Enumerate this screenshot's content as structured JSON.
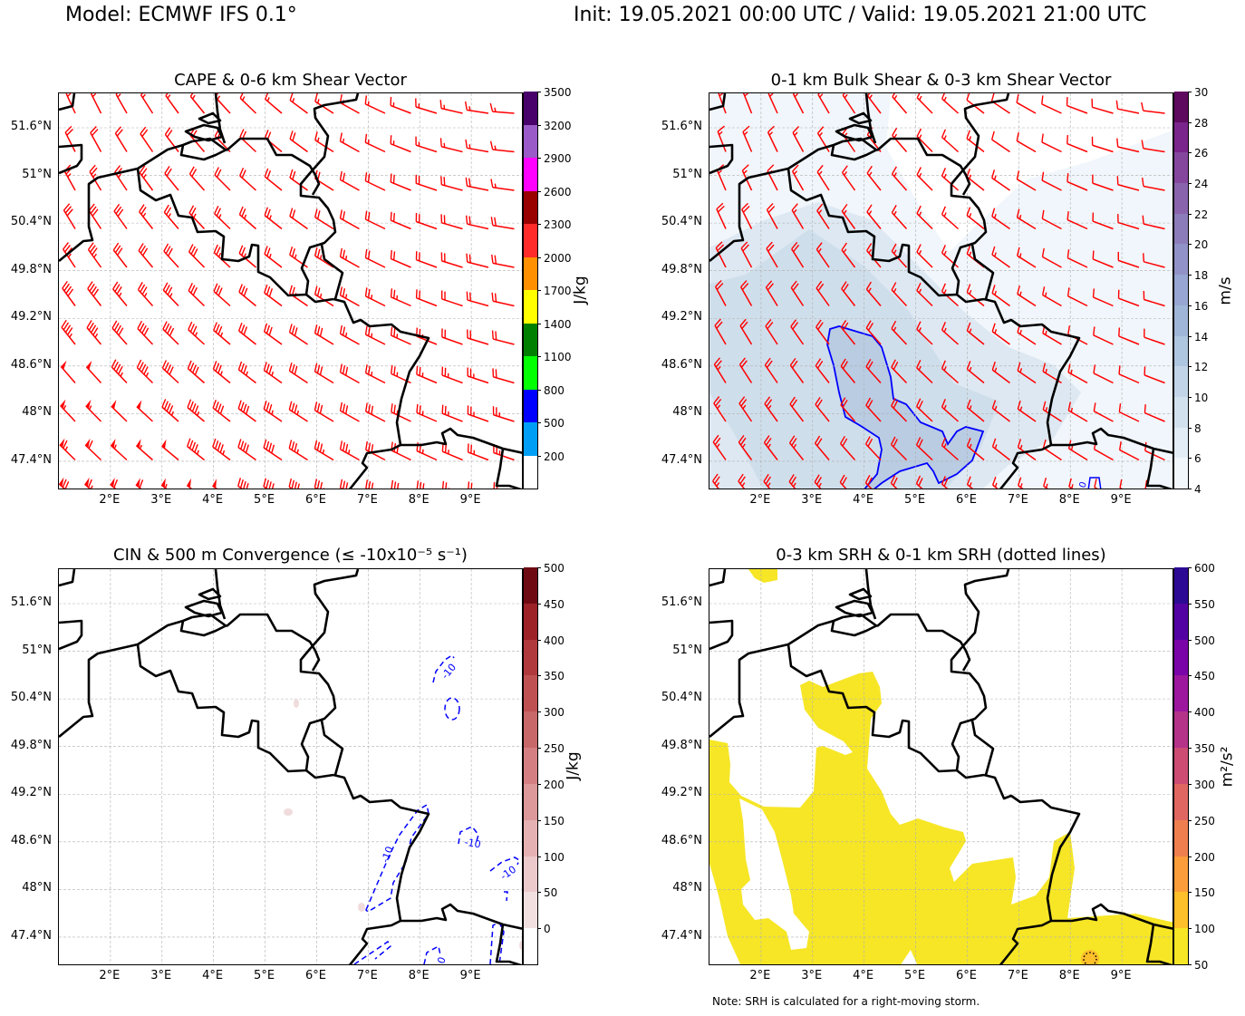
{
  "header": {
    "model": "Model: ECMWF IFS 0.1°",
    "times": "Init: 19.05.2021 00:00 UTC / Valid: 19.05.2021 21:00 UTC"
  },
  "axes": {
    "lat_ticks": [
      "51.6°N",
      "51°N",
      "50.4°N",
      "49.8°N",
      "49.2°N",
      "48.6°N",
      "48°N",
      "47.4°N"
    ],
    "lat_values": [
      51.6,
      51.0,
      50.4,
      49.8,
      49.2,
      48.6,
      48.0,
      47.4
    ],
    "lon_ticks": [
      "2°E",
      "3°E",
      "4°E",
      "5°E",
      "6°E",
      "7°E",
      "8°E",
      "9°E"
    ],
    "lon_values": [
      2,
      3,
      4,
      5,
      6,
      7,
      8,
      9
    ],
    "lon_range": [
      1,
      10
    ],
    "lat_range": [
      47.0,
      52.0
    ]
  },
  "note": "Note: SRH is calculated for a right-moving storm.",
  "chart_data": [
    {
      "type": "heatmap",
      "title": "CAPE & 0-6 km Shear Vector",
      "overlay": "wind barbs (red)",
      "colorbar": {
        "label": "J/kg",
        "extend_below": true,
        "ticks": [
          "200",
          "500",
          "800",
          "1100",
          "1400",
          "1700",
          "2000",
          "2300",
          "2600",
          "2900",
          "3200",
          "3500"
        ],
        "colors": [
          "#ffffff",
          "#009ff5",
          "#0000ff",
          "#00ff00",
          "#008000",
          "#ffff00",
          "#ff9000",
          "#ff2a2a",
          "#990000",
          "#ff00ff",
          "#9a5ac8",
          "#48006a"
        ]
      }
    },
    {
      "type": "heatmap",
      "title": "0-1 km Bulk Shear & 0-3 km Shear Vector",
      "overlay": "wind barbs (red), 14 m/s contour (blue)",
      "colorbar": {
        "label": "m/s",
        "extend_below": false,
        "ticks": [
          "4",
          "6",
          "8",
          "10",
          "12",
          "14",
          "16",
          "18",
          "20",
          "22",
          "24",
          "26",
          "28",
          "30"
        ],
        "colors": [
          "#f2f7fb",
          "#e3edf6",
          "#d2e1ee",
          "#c2d5e8",
          "#afc6e0",
          "#a0b6d8",
          "#97a6d2",
          "#9192c7",
          "#8c7cba",
          "#8964ac",
          "#85469e",
          "#7a258b",
          "#5e0a5e"
        ]
      },
      "contour_labels": [
        "0"
      ]
    },
    {
      "type": "heatmap",
      "title": "CIN & 500 m Convergence (≤ -10x10⁻⁵ s⁻¹)",
      "overlay": "convergence contours (blue dashed)",
      "colorbar": {
        "label": "J/kg",
        "extend_below": true,
        "ticks": [
          "0",
          "50",
          "100",
          "150",
          "200",
          "250",
          "300",
          "350",
          "400",
          "450",
          "500"
        ],
        "colors": [
          "#ffffff",
          "#f2e0e0",
          "#ecc9ca",
          "#e6b1b2",
          "#dd9899",
          "#d48082",
          "#c96869",
          "#bf5153",
          "#b0393d",
          "#9c2228",
          "#6e0a12"
        ]
      },
      "contour_labels": [
        "-10",
        "-10",
        "-10",
        "-10",
        "-10"
      ]
    },
    {
      "type": "heatmap",
      "title": "0-3 km SRH & 0-1 km SRH (dotted lines)",
      "overlay": "0-1 km SRH dotted contours",
      "colorbar": {
        "label": "m²/s²",
        "extend_below": false,
        "ticks": [
          "50",
          "100",
          "150",
          "200",
          "250",
          "300",
          "350",
          "400",
          "450",
          "500",
          "550",
          "600"
        ],
        "colors": [
          "#f6e626",
          "#fdbf2a",
          "#fb9d3b",
          "#f07f4f",
          "#e06661",
          "#cc4c74",
          "#b53389",
          "#9c179e",
          "#7a04a8",
          "#5202a3",
          "#2d0a94"
        ]
      }
    }
  ]
}
